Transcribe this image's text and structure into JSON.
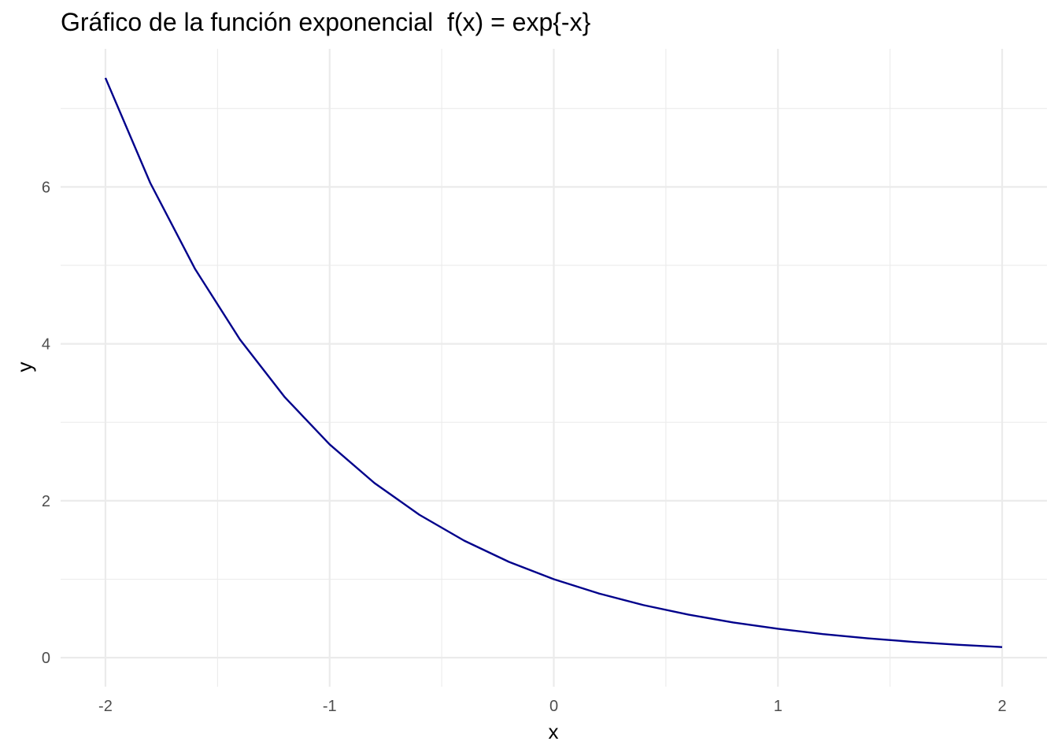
{
  "chart_data": {
    "type": "line",
    "title": "Gráfico de la función exponencial  f(x) = exp{-x}",
    "xlabel": "x",
    "ylabel": "y",
    "xlim": [
      -2.2,
      2.2
    ],
    "ylim": [
      -0.37,
      7.76
    ],
    "x_ticks": [
      -2,
      -1,
      0,
      1,
      2
    ],
    "x_tick_labels": [
      "-2",
      "-1",
      "0",
      "1",
      "2"
    ],
    "y_ticks": [
      0,
      2,
      4,
      6
    ],
    "y_tick_labels": [
      "0",
      "2",
      "4",
      "6"
    ],
    "x_minor_ticks": [
      -1.5,
      -0.5,
      0.5,
      1.5
    ],
    "y_minor_ticks": [
      1,
      3,
      5,
      7
    ],
    "grid": true,
    "legend": "none",
    "series": [
      {
        "color": "#00008B",
        "x": [
          -2.0,
          -1.8,
          -1.6,
          -1.4,
          -1.2,
          -1.0,
          -0.8,
          -0.6,
          -0.4,
          -0.2,
          0.0,
          0.2,
          0.4,
          0.6,
          0.8,
          1.0,
          1.2,
          1.4,
          1.6,
          1.8,
          2.0
        ],
        "y": [
          7.389,
          6.05,
          4.953,
          4.055,
          3.32,
          2.718,
          2.226,
          1.822,
          1.492,
          1.221,
          1.0,
          0.819,
          0.67,
          0.549,
          0.449,
          0.368,
          0.301,
          0.247,
          0.202,
          0.165,
          0.135
        ]
      }
    ]
  }
}
